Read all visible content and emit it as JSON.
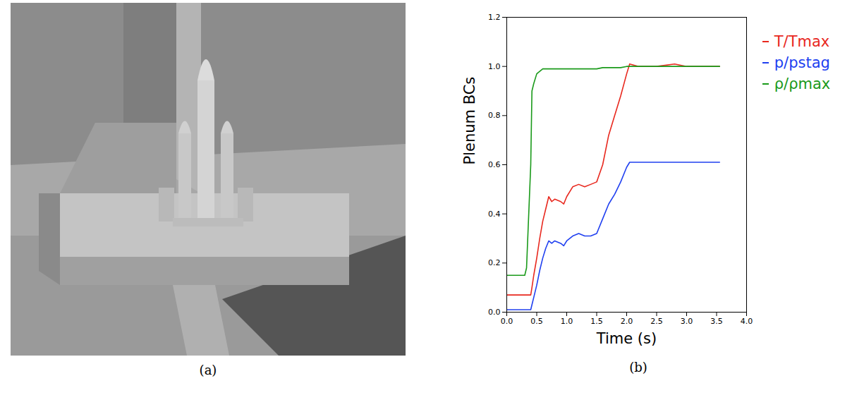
{
  "image_panel": {
    "caption": "(a)"
  },
  "chart_data": {
    "type": "line",
    "caption": "(b)",
    "ylabel": "Plenum BCs",
    "xlabel": "Time (s)",
    "x": [
      0.0,
      0.3,
      0.33,
      0.4,
      0.42,
      0.45,
      0.5,
      0.55,
      0.6,
      0.65,
      0.7,
      0.75,
      0.8,
      0.9,
      0.95,
      1.0,
      1.1,
      1.2,
      1.3,
      1.4,
      1.5,
      1.6,
      1.7,
      1.8,
      1.9,
      2.0,
      2.05,
      2.2,
      2.5,
      2.8,
      3.0,
      3.3,
      3.55
    ],
    "series": [
      {
        "name": "T/Tmax",
        "color": "#e8281e",
        "values": [
          0.07,
          0.07,
          0.07,
          0.07,
          0.1,
          0.15,
          0.22,
          0.3,
          0.37,
          0.42,
          0.47,
          0.45,
          0.46,
          0.45,
          0.44,
          0.47,
          0.51,
          0.52,
          0.51,
          0.52,
          0.53,
          0.6,
          0.72,
          0.8,
          0.88,
          0.97,
          1.01,
          1.0,
          1.0,
          1.01,
          1.0,
          1.0,
          1.0
        ]
      },
      {
        "name": "p/pstag",
        "color": "#2040f0",
        "values": [
          0.01,
          0.01,
          0.01,
          0.01,
          0.03,
          0.06,
          0.11,
          0.17,
          0.22,
          0.26,
          0.29,
          0.28,
          0.29,
          0.28,
          0.27,
          0.29,
          0.31,
          0.32,
          0.31,
          0.31,
          0.32,
          0.38,
          0.44,
          0.48,
          0.53,
          0.59,
          0.61,
          0.61,
          0.61,
          0.61,
          0.61,
          0.61,
          0.61
        ]
      },
      {
        "name": "ρ/ρmax",
        "color": "#1a9a1a",
        "values": [
          0.15,
          0.15,
          0.18,
          0.6,
          0.9,
          0.93,
          0.97,
          0.98,
          0.99,
          0.99,
          0.99,
          0.99,
          0.99,
          0.99,
          0.99,
          0.99,
          0.99,
          0.99,
          0.99,
          0.99,
          0.99,
          0.995,
          0.995,
          0.995,
          0.995,
          1.0,
          1.0,
          1.0,
          1.0,
          1.0,
          1.0,
          1.0,
          1.0
        ]
      }
    ],
    "xlim": [
      0.0,
      4.0
    ],
    "xticks": [
      {
        "value": 0,
        "label": "0.0"
      },
      {
        "value": 0.5,
        "label": "0.5"
      },
      {
        "value": 1,
        "label": "1.0"
      },
      {
        "value": 1.5,
        "label": "1.5"
      },
      {
        "value": 2,
        "label": "2.0"
      },
      {
        "value": 2.5,
        "label": "2.5"
      },
      {
        "value": 3,
        "label": "3.0"
      },
      {
        "value": 3.5,
        "label": "3.5"
      },
      {
        "value": 4,
        "label": "4.0"
      }
    ],
    "ylim": [
      0.0,
      1.2
    ],
    "yticks": [
      {
        "value": 0,
        "label": "0.0"
      },
      {
        "value": 0.2,
        "label": "0.2"
      },
      {
        "value": 0.4,
        "label": "0.4"
      },
      {
        "value": 0.6,
        "label": "0.6"
      },
      {
        "value": 0.8,
        "label": "0.8"
      },
      {
        "value": 1,
        "label": "1.0"
      },
      {
        "value": 1.2,
        "label": "1.2"
      }
    ],
    "grid": false,
    "legend": "right"
  }
}
